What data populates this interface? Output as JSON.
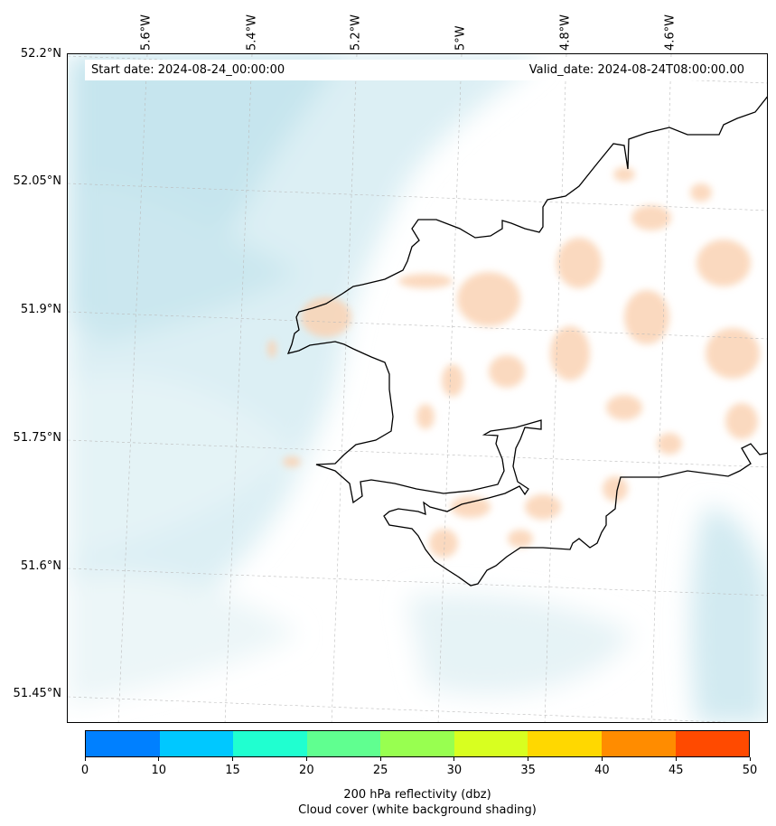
{
  "map": {
    "start_date": "Start date: 2024-08-24_00:00:00",
    "valid_date": "Valid_date: 2024-08-24T08:00:00.00",
    "lon_labels": [
      "5.6°W",
      "5.4°W",
      "5.2°W",
      "5°W",
      "4.8°W",
      "4.6°W"
    ],
    "lat_labels": [
      "52.2°N",
      "52.05°N",
      "51.9°N",
      "51.75°N",
      "51.6°N",
      "51.45°N"
    ],
    "coastline_color": "#000000",
    "cloud_color": "#c9e6ee",
    "reflectivity_light_color": "#fad3b4"
  },
  "colorbar": {
    "ticks": [
      "0",
      "10",
      "15",
      "20",
      "25",
      "30",
      "35",
      "40",
      "45",
      "50"
    ],
    "colors": [
      "#0080ff",
      "#00c8ff",
      "#20ffd0",
      "#60ff90",
      "#98ff50",
      "#d8ff20",
      "#ffd800",
      "#ff8c00",
      "#ff4a00"
    ],
    "title_line1": "200 hPa reflectivity (dbz)",
    "title_line2": "Cloud cover (white background shading)"
  }
}
